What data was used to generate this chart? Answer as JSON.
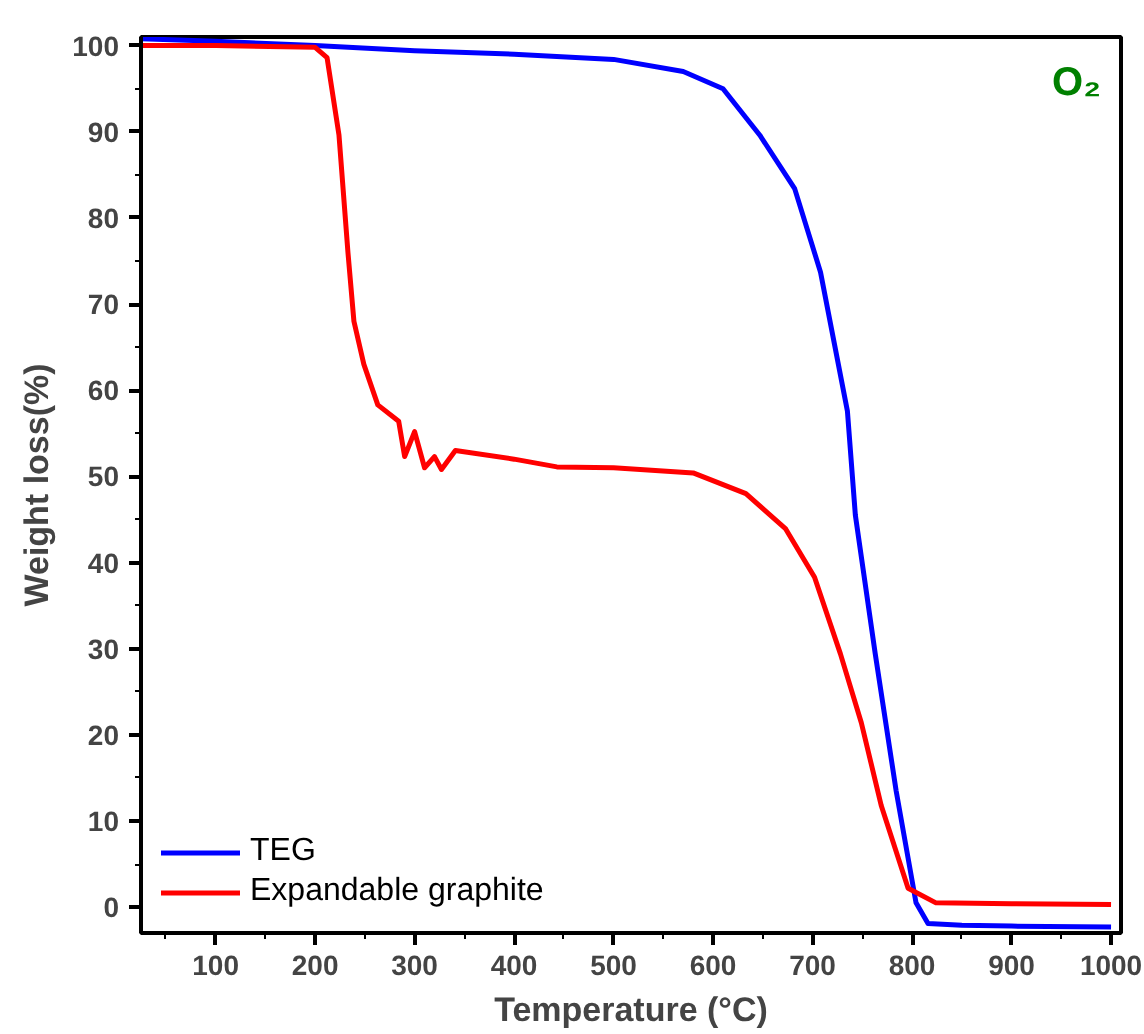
{
  "chart_data": {
    "type": "line",
    "xlabel": "Temperature (°C)",
    "ylabel": "Weight loss(%)",
    "xlim": [
      25,
      1010
    ],
    "ylim": [
      -3,
      101
    ],
    "xticks": [
      100,
      200,
      300,
      400,
      500,
      600,
      700,
      800,
      900,
      1000
    ],
    "yticks": [
      0,
      10,
      20,
      30,
      40,
      50,
      60,
      70,
      80,
      90,
      100
    ],
    "legend": "bottom left",
    "grid": false,
    "marker": "none",
    "line_style": "solid",
    "annotations": [
      "O₂"
    ],
    "series": [
      {
        "name": "TEG",
        "color": "#0000ff",
        "x": [
          25,
          100,
          200,
          300,
          400,
          500,
          570,
          610,
          647,
          682,
          708,
          735,
          743,
          763,
          784,
          804,
          816,
          850,
          900,
          1000
        ],
        "values": [
          100.8,
          100.5,
          100,
          99.4,
          99,
          98.4,
          97,
          95,
          89.6,
          83.4,
          73.7,
          57.6,
          45.5,
          29.4,
          13.5,
          0.5,
          -1.9,
          -2.1,
          -2.2,
          -2.3
        ]
      },
      {
        "name": "Expandable graphite",
        "color": "#ff0000",
        "x": [
          25,
          100,
          200,
          212,
          224,
          233,
          239,
          249,
          263,
          284,
          290,
          300,
          310,
          320,
          327,
          341,
          400,
          443,
          500,
          580,
          633,
          673,
          702,
          728,
          749,
          769,
          796,
          824,
          900,
          1000
        ],
        "values": [
          100,
          100,
          99.8,
          98.6,
          89.6,
          76,
          68,
          63,
          58.3,
          56.4,
          52.3,
          55.2,
          51,
          52.3,
          50.8,
          53,
          52,
          51.1,
          51,
          50.4,
          48,
          43.9,
          38.3,
          29.4,
          21.4,
          11.8,
          2.2,
          0.5,
          0.4,
          0.3
        ]
      }
    ]
  }
}
